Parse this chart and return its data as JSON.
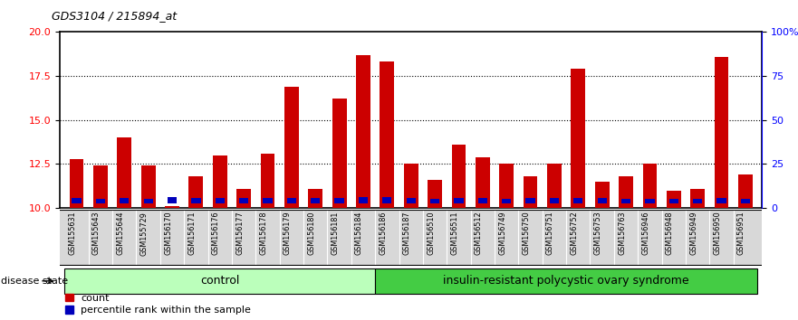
{
  "title": "GDS3104 / 215894_at",
  "samples": [
    "GSM155631",
    "GSM155643",
    "GSM155644",
    "GSM155729",
    "GSM156170",
    "GSM156171",
    "GSM156176",
    "GSM156177",
    "GSM156178",
    "GSM156179",
    "GSM156180",
    "GSM156181",
    "GSM156184",
    "GSM156186",
    "GSM156187",
    "GSM156510",
    "GSM156511",
    "GSM156512",
    "GSM156749",
    "GSM156750",
    "GSM156751",
    "GSM156752",
    "GSM156753",
    "GSM156763",
    "GSM156946",
    "GSM156948",
    "GSM156949",
    "GSM156950",
    "GSM156951"
  ],
  "red_values": [
    12.8,
    12.4,
    14.0,
    12.4,
    10.1,
    11.8,
    13.0,
    11.1,
    13.1,
    16.9,
    11.1,
    16.2,
    18.7,
    18.3,
    12.5,
    11.6,
    13.6,
    12.9,
    12.5,
    11.8,
    12.5,
    17.9,
    11.5,
    11.8,
    12.5,
    11.0,
    11.1,
    18.6,
    11.9
  ],
  "blue_values": [
    0.3,
    0.25,
    0.28,
    0.25,
    0.35,
    0.28,
    0.27,
    0.27,
    0.27,
    0.28,
    0.27,
    0.27,
    0.32,
    0.32,
    0.28,
    0.25,
    0.28,
    0.27,
    0.25,
    0.27,
    0.27,
    0.27,
    0.27,
    0.25,
    0.25,
    0.25,
    0.25,
    0.27,
    0.25
  ],
  "group_labels": [
    "control",
    "insulin-resistant polycystic ovary syndrome"
  ],
  "group_boundaries": [
    0,
    13,
    29
  ],
  "control_color": "#bbffbb",
  "irpcos_color": "#44cc44",
  "bar_color_red": "#cc0000",
  "bar_color_blue": "#0000bb",
  "bar_width": 0.6,
  "ymin": 10,
  "ymax": 20,
  "yticks_left": [
    10,
    12.5,
    15,
    17.5,
    20
  ],
  "yticks_right_labels": [
    "0",
    "25",
    "50",
    "75",
    "100%"
  ],
  "yticks_right_vals": [
    0,
    25,
    50,
    75,
    100
  ],
  "grid_values": [
    12.5,
    15,
    17.5
  ],
  "legend_count": "count",
  "legend_pct": "percentile rank within the sample",
  "disease_state_label": "disease state",
  "tick_bg_color": "#d8d8d8"
}
